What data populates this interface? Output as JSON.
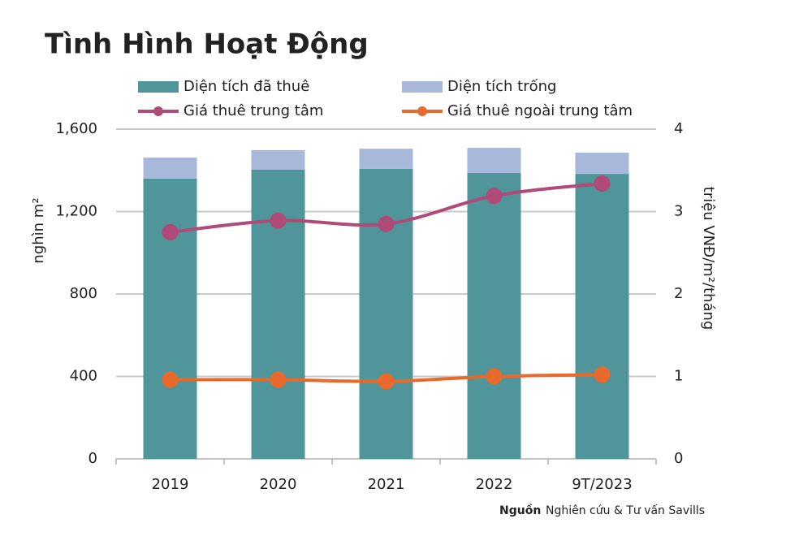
{
  "chart_data": {
    "type": "bar-line",
    "title": "Tình Hình Hoạt Động",
    "y_label": "nghìn m²",
    "y2_label": "triệu VNĐ/m²/tháng",
    "source_label": "Nguồn",
    "source_text": "Nghiên cứu & Tư vấn Savills",
    "categories": [
      "2019",
      "2020",
      "2021",
      "2022",
      "9T/2023"
    ],
    "series": [
      {
        "name": "Diện tích đã thuê",
        "type": "bar",
        "color": "#4f9599",
        "values": [
          1360,
          1403,
          1407,
          1387,
          1383
        ]
      },
      {
        "name": "Diện tích trống",
        "type": "bar",
        "color": "#a8b8da",
        "values": [
          102,
          95,
          98,
          122,
          103
        ]
      },
      {
        "name": "Giá thuê trung tâm",
        "type": "line",
        "axis": "y2",
        "color": "#b04a78",
        "values": [
          2.75,
          2.89,
          2.85,
          3.19,
          3.34
        ]
      },
      {
        "name": "Giá thuê ngoài trung tâm",
        "type": "line",
        "axis": "y2",
        "color": "#e8692c",
        "values": [
          0.96,
          0.96,
          0.94,
          1.0,
          1.02
        ]
      }
    ],
    "stacked": true,
    "ylim": [
      0,
      1600
    ],
    "yticks": [
      0,
      400,
      800,
      {
        "value": 1200,
        "label": "1,200"
      },
      {
        "value": 1600,
        "label": "1,600"
      }
    ],
    "y2lim": [
      0,
      4
    ],
    "y2ticks": [
      0,
      1,
      2,
      3,
      4
    ],
    "grid": true
  }
}
